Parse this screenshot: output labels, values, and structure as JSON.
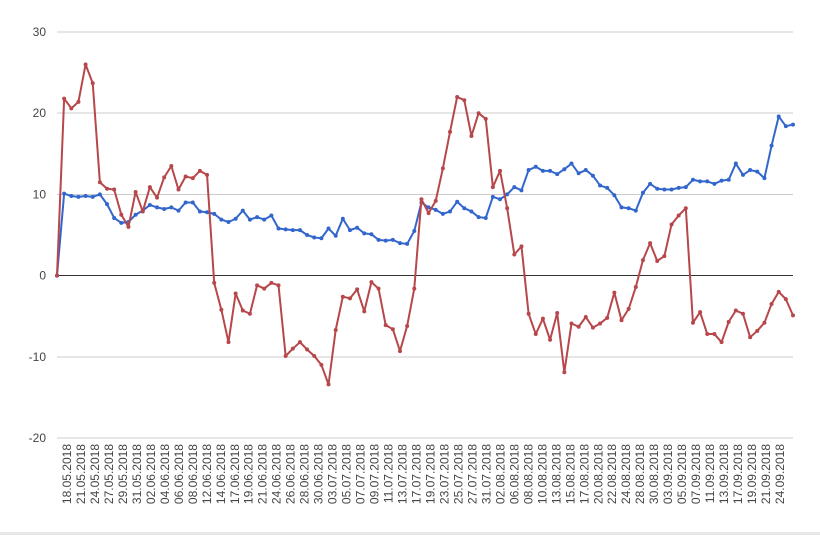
{
  "chart_data": {
    "type": "line",
    "title": "",
    "xlabel": "",
    "ylabel": "",
    "ylim": [
      -20,
      30
    ],
    "yticks": [
      30,
      20,
      10,
      0,
      -10,
      -20
    ],
    "grid": true,
    "legend": "none",
    "x_tick_labels": [
      "18.05.2018",
      "21.05.2018",
      "24.05.2018",
      "27.05.2018",
      "29.05.2018",
      "31.05.2018",
      "02.06.2018",
      "04.06.2018",
      "06.06.2018",
      "08.06.2018",
      "12.06.2018",
      "14.06.2018",
      "17.06.2018",
      "19.06.2018",
      "21.06.2018",
      "24.06.2018",
      "26.06.2018",
      "28.06.2018",
      "30.06.2018",
      "03.07.2018",
      "05.07.2018",
      "07.07.2018",
      "09.07.2018",
      "11.07.2018",
      "13.07.2018",
      "17.07.2018",
      "19.07.2018",
      "23.07.2018",
      "25.07.2018",
      "27.07.2018",
      "31.07.2018",
      "02.08.2018",
      "06.08.2018",
      "08.08.2018",
      "10.08.2018",
      "13.08.2018",
      "15.08.2018",
      "17.08.2018",
      "20.08.2018",
      "22.08.2018",
      "24.08.2018",
      "28.08.2018",
      "30.08.2018",
      "03.09.2018",
      "05.09.2018",
      "07.09.2018",
      "11.09.2018",
      "13.09.2018",
      "17.09.2018",
      "19.09.2018",
      "21.09.2018",
      "24.09.2018"
    ],
    "series": [
      {
        "color": "#3366cc",
        "values": [
          0,
          10.1,
          9.8,
          9.7,
          9.8,
          9.7,
          10.0,
          8.8,
          7.1,
          6.5,
          6.6,
          7.5,
          8.0,
          8.7,
          8.4,
          8.2,
          8.4,
          8.0,
          9.0,
          9.0,
          7.9,
          7.8,
          7.6,
          6.9,
          6.6,
          7.0,
          8.0,
          6.9,
          7.2,
          6.9,
          7.4,
          5.8,
          5.7,
          5.6,
          5.6,
          5.0,
          4.7,
          4.6,
          5.8,
          4.9,
          7.0,
          5.6,
          5.9,
          5.2,
          5.1,
          4.4,
          4.3,
          4.4,
          4.0,
          3.9,
          5.5,
          9.0,
          8.4,
          8.1,
          7.6,
          7.9,
          9.1,
          8.3,
          7.9,
          7.2,
          7.1,
          9.7,
          9.4,
          10.0,
          10.9,
          10.5,
          13.0,
          13.4,
          12.9,
          12.9,
          12.5,
          13.1,
          13.8,
          12.6,
          13.0,
          12.3,
          11.1,
          10.8,
          9.9,
          8.4,
          8.3,
          8.0,
          10.2,
          11.3,
          10.7,
          10.6,
          10.6,
          10.8,
          10.9,
          11.8,
          11.6,
          11.6,
          11.3,
          11.7,
          11.8,
          13.8,
          12.4,
          13.0,
          12.8,
          12.0,
          16.0,
          19.6,
          18.4,
          18.6
        ]
      },
      {
        "color": "#b7474a",
        "values": [
          0,
          21.8,
          20.6,
          21.4,
          26.0,
          23.7,
          11.5,
          10.7,
          10.6,
          7.5,
          6.0,
          10.3,
          7.9,
          10.9,
          9.6,
          12.1,
          13.5,
          10.6,
          12.2,
          12.0,
          12.9,
          12.4,
          -0.9,
          -4.2,
          -8.2,
          -2.2,
          -4.3,
          -4.7,
          -1.2,
          -1.6,
          -0.9,
          -1.2,
          -9.9,
          -9.0,
          -8.2,
          -9.1,
          -9.9,
          -11.0,
          -13.4,
          -6.7,
          -2.6,
          -2.8,
          -1.7,
          -4.4,
          -0.8,
          -1.6,
          -6.1,
          -6.6,
          -9.3,
          -6.2,
          -1.6,
          9.4,
          7.7,
          9.2,
          13.2,
          17.7,
          22.0,
          21.6,
          17.2,
          20.0,
          19.3,
          10.9,
          12.9,
          8.3,
          2.6,
          3.6,
          -4.7,
          -7.2,
          -5.3,
          -7.9,
          -4.6,
          -11.9,
          -5.9,
          -6.3,
          -5.1,
          -6.4,
          -5.9,
          -5.2,
          -2.1,
          -5.5,
          -4.1,
          -1.4,
          1.9,
          4.0,
          1.8,
          2.4,
          6.3,
          7.4,
          8.3,
          -5.8,
          -4.5,
          -7.2,
          -7.2,
          -8.2,
          -5.7,
          -4.3,
          -4.7,
          -7.6,
          -6.8,
          -5.8,
          -3.5,
          -2.0,
          -2.9,
          -4.9
        ]
      }
    ]
  }
}
